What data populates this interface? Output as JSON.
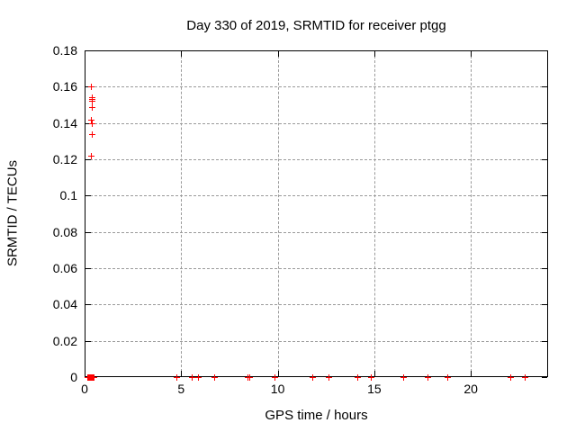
{
  "title": "Day 330 of 2019, SRMTID for receiver ptgg",
  "colors": {
    "marker": "#ff0000",
    "grid": "#9a9a9a",
    "border": "#000000",
    "background": "#ffffff"
  },
  "chart_data": {
    "type": "scatter",
    "title": "Day 330 of 2019, SRMTID for receiver ptgg",
    "xlabel": "GPS time / hours",
    "ylabel": "SRMTID / TECUs",
    "xlim": [
      0,
      24
    ],
    "ylim": [
      0,
      0.18
    ],
    "grid": true,
    "legend": "none",
    "marker": {
      "shape": "plus",
      "color": "#ff0000"
    },
    "xticks": {
      "values": [
        0,
        5,
        10,
        15,
        20
      ],
      "labels": [
        "0",
        "5",
        "10",
        "15",
        "20"
      ]
    },
    "yticks": {
      "values": [
        0,
        0.02,
        0.04,
        0.06,
        0.08,
        0.1,
        0.12,
        0.14,
        0.16,
        0.18
      ],
      "labels": [
        "0",
        "0.02",
        "0.04",
        "0.06",
        "0.08",
        "0.1",
        "0.12",
        "0.14",
        "0.16",
        "0.18"
      ]
    },
    "series": [
      {
        "name": "SRMTID",
        "points": [
          [
            0.31,
            0.16
          ],
          [
            0.35,
            0.154
          ],
          [
            0.35,
            0.153
          ],
          [
            0.35,
            0.152
          ],
          [
            0.35,
            0.149
          ],
          [
            0.33,
            0.142
          ],
          [
            0.35,
            0.14
          ],
          [
            0.35,
            0.134
          ],
          [
            0.33,
            0.122
          ],
          [
            0.15,
            0
          ],
          [
            0.18,
            0
          ],
          [
            0.21,
            0
          ],
          [
            0.24,
            0
          ],
          [
            0.27,
            0
          ],
          [
            0.3,
            0
          ],
          [
            0.33,
            0
          ],
          [
            0.36,
            0
          ],
          [
            0.39,
            0
          ],
          [
            0.42,
            0
          ],
          [
            0.45,
            0
          ],
          [
            4.76,
            0
          ],
          [
            5.53,
            0
          ],
          [
            5.88,
            0
          ],
          [
            6.72,
            0
          ],
          [
            8.45,
            0
          ],
          [
            8.55,
            0
          ],
          [
            9.85,
            0
          ],
          [
            11.81,
            0
          ],
          [
            12.65,
            0
          ],
          [
            14.13,
            0
          ],
          [
            14.83,
            0
          ],
          [
            16.51,
            0
          ],
          [
            17.77,
            0
          ],
          [
            18.79,
            0
          ],
          [
            22.03,
            0
          ],
          [
            22.78,
            0
          ]
        ]
      }
    ]
  }
}
